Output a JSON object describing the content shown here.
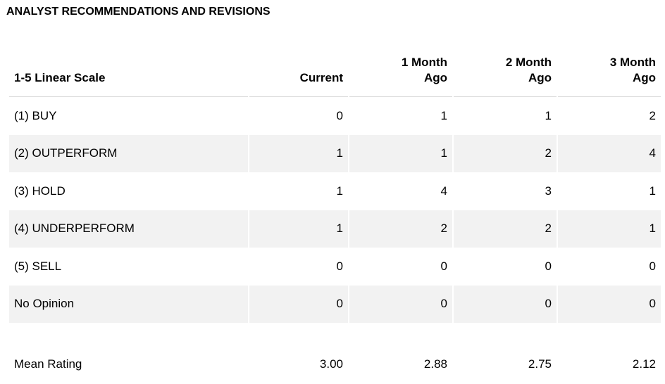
{
  "title": "ANALYST RECOMMENDATIONS AND REVISIONS",
  "headers": {
    "scale": "1-5 Linear Scale",
    "current": "Current",
    "one_month_line1": "1 Month",
    "one_month_line2": "Ago",
    "two_month_line1": "2 Month",
    "two_month_line2": "Ago",
    "three_month_line1": "3 Month",
    "three_month_line2": "Ago"
  },
  "rows": [
    {
      "label": "(1) BUY",
      "current": "0",
      "one_month": "1",
      "two_month": "1",
      "three_month": "2"
    },
    {
      "label": "(2) OUTPERFORM",
      "current": "1",
      "one_month": "1",
      "two_month": "2",
      "three_month": "4"
    },
    {
      "label": "(3) HOLD",
      "current": "1",
      "one_month": "4",
      "two_month": "3",
      "three_month": "1"
    },
    {
      "label": "(4) UNDERPERFORM",
      "current": "1",
      "one_month": "2",
      "two_month": "2",
      "three_month": "1"
    },
    {
      "label": "(5) SELL",
      "current": "0",
      "one_month": "0",
      "two_month": "0",
      "three_month": "0"
    },
    {
      "label": "No Opinion",
      "current": "0",
      "one_month": "0",
      "two_month": "0",
      "three_month": "0"
    }
  ],
  "mean": {
    "label": "Mean Rating",
    "current": "3.00",
    "one_month": "2.88",
    "two_month": "2.75",
    "three_month": "2.12"
  }
}
